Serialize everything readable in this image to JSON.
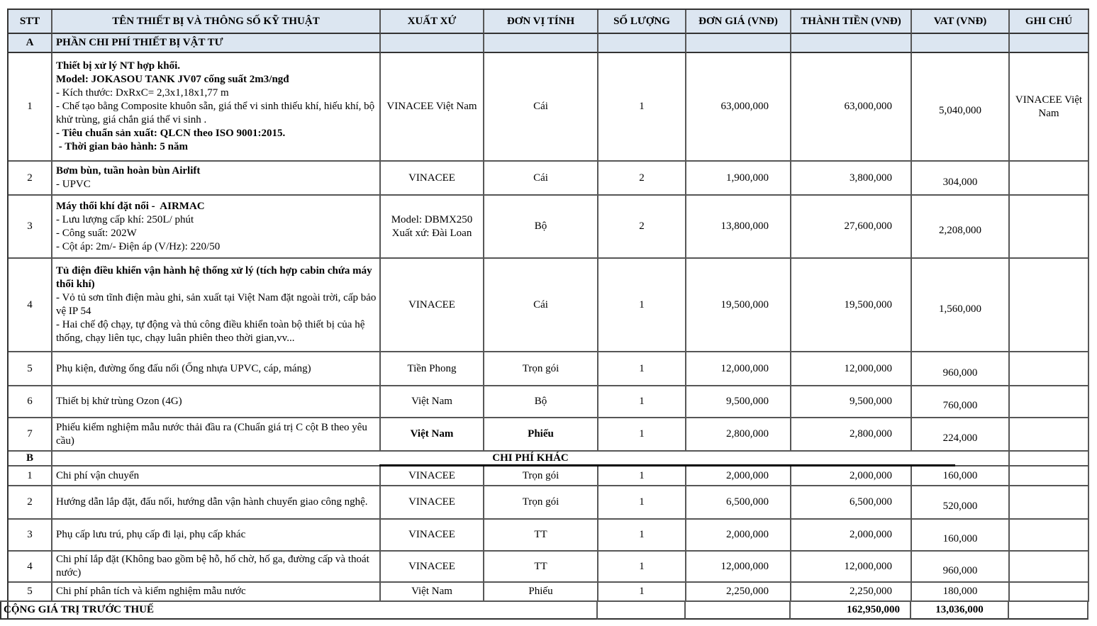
{
  "table": {
    "columns": [
      {
        "key": "stt",
        "label": "STT"
      },
      {
        "key": "name",
        "label": "TÊN THIẾT BỊ VÀ THÔNG SỐ KỸ THUẬT"
      },
      {
        "key": "origin",
        "label": "XUẤT XỨ"
      },
      {
        "key": "unit",
        "label": "ĐƠN VỊ TÍNH"
      },
      {
        "key": "qty",
        "label": "SỐ LƯỢNG"
      },
      {
        "key": "unit_price",
        "label": "ĐƠN GIÁ (VNĐ)"
      },
      {
        "key": "amount",
        "label": "THÀNH TIỀN (VNĐ)"
      },
      {
        "key": "vat",
        "label": "VAT (VNĐ)"
      },
      {
        "key": "note",
        "label": "GHI CHÚ"
      }
    ],
    "section_a": {
      "stt": "A",
      "title": "PHẦN CHI PHÍ THIẾT BỊ VẬT TƯ"
    },
    "rows_a": [
      {
        "stt": "1",
        "desc": [
          {
            "t": "Thiết bị xử lý NT hợp khối.",
            "b": true
          },
          {
            "t": "Model: JOKASOU TANK JV07 cống suất 2m3/ngđ",
            "b": true
          },
          {
            "t": "- Kích thước: DxRxC= 2,3x1,18x1,77 m",
            "b": false
          },
          {
            "t": "- Chế tạo bằng Composite khuôn sẵn, giá thể vi sinh thiếu khí, hiếu khí, bộ khử trùng, giá chắn giá thể vi sinh .",
            "b": false
          },
          {
            "t": "- Tiêu chuẩn sản xuất: QLCN theo ISO 9001:2015.",
            "b": true
          },
          {
            "t": " - Thời gian bảo hành: 5 năm",
            "b": true
          }
        ],
        "origin": [
          "VINACEE Việt Nam"
        ],
        "origin_bold": false,
        "unit": "Cái",
        "unit_bold": false,
        "qty": "1",
        "unit_price": "63,000,000",
        "amount": "63,000,000",
        "vat": "5,040,000",
        "note": "VINACEE Việt Nam"
      },
      {
        "stt": "2",
        "desc": [
          {
            "t": "Bơm bùn, tuần hoàn bùn Airlift",
            "b": true
          },
          {
            "t": "- UPVC",
            "b": false
          }
        ],
        "origin": [
          "VINACEE"
        ],
        "origin_bold": false,
        "unit": "Cái",
        "unit_bold": false,
        "qty": "2",
        "unit_price": "1,900,000",
        "amount": "3,800,000",
        "vat": "304,000",
        "note": ""
      },
      {
        "stt": "3",
        "desc": [
          {
            "t": "Máy thổi khí đặt nổi -  AIRMAC",
            "b": true
          },
          {
            "t": "- Lưu lượng cấp khí: 250L/ phút",
            "b": false
          },
          {
            "t": "- Công suất: 202W",
            "b": false
          },
          {
            "t": "- Cột áp: 2m/- Điện áp (V/Hz): 220/50",
            "b": false
          }
        ],
        "origin": [
          "Model: DBMX250",
          "Xuất xứ: Đài Loan"
        ],
        "origin_bold": false,
        "unit": "Bộ",
        "unit_bold": false,
        "qty": "2",
        "unit_price": "13,800,000",
        "amount": "27,600,000",
        "vat": "2,208,000",
        "note": ""
      },
      {
        "stt": "4",
        "desc": [
          {
            "t": "Tủ điện điều khiển vận hành hệ thống xử lý (tích hợp cabin chứa máy thổi khí)",
            "b": true
          },
          {
            "t": "- Vỏ tủ sơn tĩnh điện màu ghi, sản xuất tại Việt Nam đặt ngoài trời, cấp bảo vệ IP 54",
            "b": false
          },
          {
            "t": "- Hai chế độ chạy, tự động và thủ công điều khiển toàn bộ thiết bị của hệ thống, chạy liên tục, chạy luân phiên theo thời gian,vv...",
            "b": false
          }
        ],
        "origin": [
          "VINACEE"
        ],
        "origin_bold": false,
        "unit": "Cái",
        "unit_bold": false,
        "qty": "1",
        "unit_price": "19,500,000",
        "amount": "19,500,000",
        "vat": "1,560,000",
        "note": ""
      },
      {
        "stt": "5",
        "desc": [
          {
            "t": "Phụ kiện, đường ống đấu nối (Ống nhựa UPVC, cáp, máng)",
            "b": false
          }
        ],
        "origin": [
          "Tiền Phong"
        ],
        "origin_bold": false,
        "unit": "Trọn gói",
        "unit_bold": false,
        "qty": "1",
        "unit_price": "12,000,000",
        "amount": "12,000,000",
        "vat": "960,000",
        "note": ""
      },
      {
        "stt": "6",
        "desc": [
          {
            "t": "Thiết bị khử trùng Ozon (4G)",
            "b": false
          }
        ],
        "origin": [
          "Việt Nam"
        ],
        "origin_bold": false,
        "unit": "Bộ",
        "unit_bold": false,
        "qty": "1",
        "unit_price": "9,500,000",
        "amount": "9,500,000",
        "vat": "760,000",
        "note": ""
      },
      {
        "stt": "7",
        "desc": [
          {
            "t": "Phiếu kiểm nghiệm mẫu nước thải đầu ra (Chuẩn giá trị C cột B theo yêu cầu)",
            "b": false
          }
        ],
        "origin": [
          "Việt Nam"
        ],
        "origin_bold": true,
        "unit": "Phiếu",
        "unit_bold": true,
        "qty": "1",
        "unit_price": "2,800,000",
        "amount": "2,800,000",
        "vat": "224,000",
        "note": ""
      }
    ],
    "section_b": {
      "stt": "B",
      "title": "CHI PHÍ KHÁC"
    },
    "rows_b": [
      {
        "stt": "1",
        "desc": [
          {
            "t": "Chi phí vận chuyển",
            "b": false
          }
        ],
        "origin": [
          "VINACEE"
        ],
        "origin_bold": false,
        "unit": "Trọn gói",
        "unit_bold": false,
        "qty": "1",
        "unit_price": "2,000,000",
        "amount": "2,000,000",
        "vat": "160,000",
        "note": ""
      },
      {
        "stt": "2",
        "desc": [
          {
            "t": "Hướng dẫn lắp đặt, đấu nối, hướng dẫn vận hành chuyển giao công nghệ.",
            "b": false
          }
        ],
        "origin": [
          "VINACEE"
        ],
        "origin_bold": false,
        "unit": "Trọn gói",
        "unit_bold": false,
        "qty": "1",
        "unit_price": "6,500,000",
        "amount": "6,500,000",
        "vat": "520,000",
        "note": ""
      },
      {
        "stt": "3",
        "desc": [
          {
            "t": "Phụ cấp lưu trú, phụ cấp đi lại, phụ cấp khác",
            "b": false
          }
        ],
        "origin": [
          "VINACEE"
        ],
        "origin_bold": false,
        "unit": "TT",
        "unit_bold": false,
        "qty": "1",
        "unit_price": "2,000,000",
        "amount": "2,000,000",
        "vat": "160,000",
        "note": ""
      },
      {
        "stt": "4",
        "desc": [
          {
            "t": "Chi phí lắp đặt (Không bao gồm bệ hỗ, hố chờ, hố ga, đường cấp và thoát nước)",
            "b": false
          }
        ],
        "origin": [
          "VINACEE"
        ],
        "origin_bold": false,
        "unit": "TT",
        "unit_bold": false,
        "qty": "1",
        "unit_price": "12,000,000",
        "amount": "12,000,000",
        "vat": "960,000",
        "note": ""
      },
      {
        "stt": "5",
        "desc": [
          {
            "t": "Chi phí phân tích và kiểm nghiệm mẫu nước",
            "b": false
          }
        ],
        "origin": [
          "Việt Nam"
        ],
        "origin_bold": false,
        "unit": "Phiếu",
        "unit_bold": false,
        "qty": "1",
        "unit_price": "2,250,000",
        "amount": "2,250,000",
        "vat": "180,000",
        "note": ""
      }
    ],
    "total": {
      "label": "CỘNG GIÁ TRỊ TRƯỚC THUẾ",
      "amount": "162,950,000",
      "vat": "13,036,000"
    }
  },
  "colors": {
    "header_fill": "#dce6f1",
    "grid_line": "#565656",
    "outer_line": "#333333",
    "section_underline": "#000000"
  }
}
